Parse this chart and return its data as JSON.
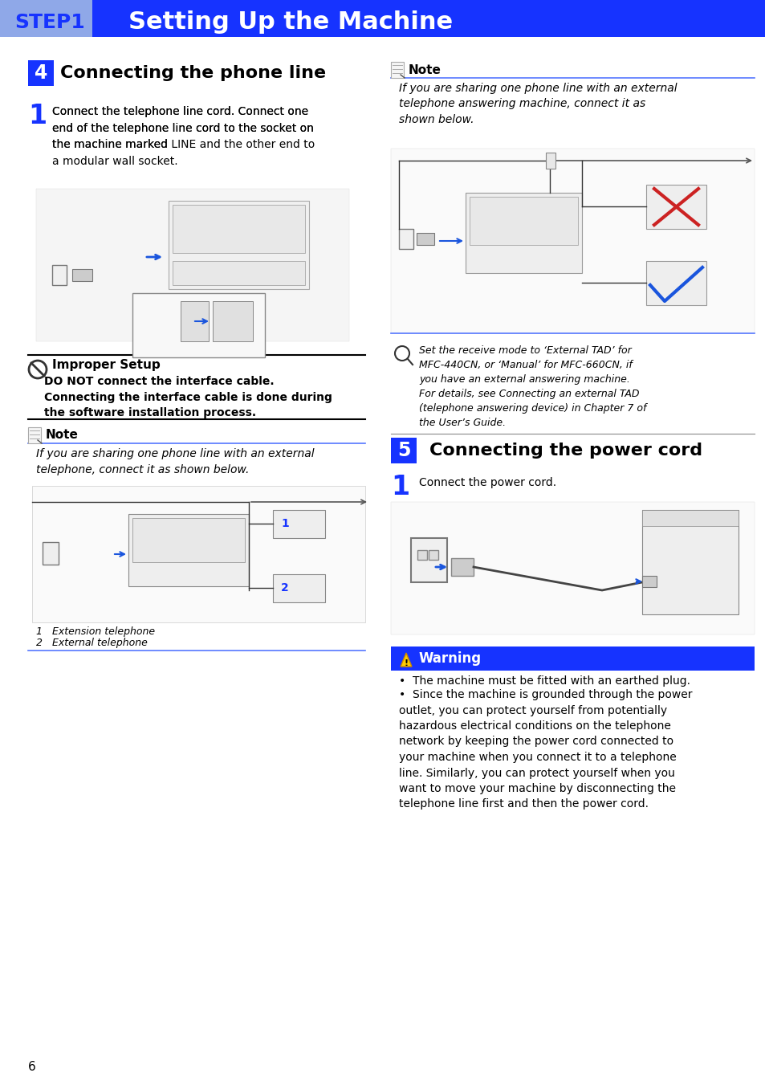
{
  "page_bg": "#ffffff",
  "header_bg": "#1633ff",
  "header_light_bg": "#8fa8e8",
  "step1_text": "STEP1",
  "header_title": "  Setting Up the Machine",
  "section4_num": "4",
  "section4_title": "  Connecting the phone line",
  "section5_num": "5",
  "section5_title": "  Connecting the power cord",
  "section_num_bg": "#1633ff",
  "step1_body": "Connect the telephone line cord. Connect one\nend of the telephone line cord to the socket on\nthe machine marked LINE and the other end to\na modular wall socket.",
  "step1_body_bold": "LINE",
  "step1_body_right": "Connect the power cord.",
  "improper_title": "Improper Setup",
  "improper_body_bold": "DO NOT connect the interface cable.\nConnecting the interface cable is done during\nthe software installation process.",
  "note_left_title": "Note",
  "note_left_body": "If you are sharing one phone line with an external\ntelephone, connect it as shown below.",
  "note_left_caption1": "1   Extension telephone",
  "note_left_caption2": "2   External telephone",
  "note_right_title": "Note",
  "note_right_body": "If you are sharing one phone line with an external\ntelephone answering machine, connect it as\nshown below.",
  "magnifier_text": "Set the receive mode to ‘External TAD’ for\nMFC-440CN, or ‘Manual’ for MFC-660CN, if\nyou have an external answering machine.\nFor details, see Connecting an external TAD\n(telephone answering device) in Chapter 7 of\nthe User’s Guide.",
  "warning_title": "  Warning",
  "warning_bg": "#1633ff",
  "warning_bullet1": "The machine must be fitted with an earthed plug.",
  "warning_bullet2": "Since the machine is grounded through the power\noutlet, you can protect yourself from potentially\nhazardous electrical conditions on the telephone\nnetwork by keeping the power cord connected to\nyour machine when you connect it to a telephone\nline. Similarly, you can protect yourself when you\nwant to move your machine by disconnecting the\ntelephone line first and then the power cord.",
  "page_number": "6",
  "blue_line": "#5577ff",
  "text_blue": "#1633ff",
  "divider_color": "#888888"
}
